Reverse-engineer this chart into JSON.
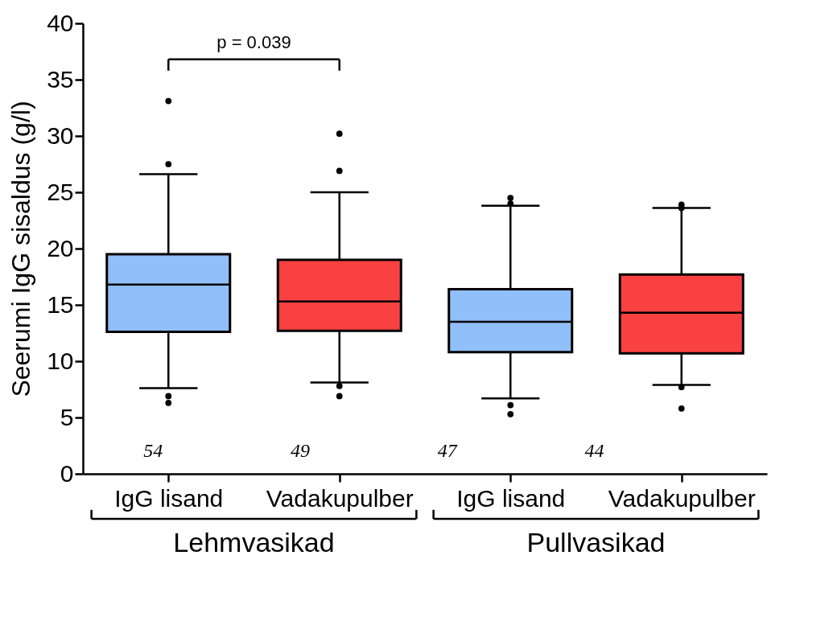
{
  "chart_data": {
    "type": "box",
    "ylabel": "Seerumi IgG sisaldus (g/l)",
    "categories": [
      "IgG lisand",
      "Vadakupulber",
      "IgG lisand",
      "Vadakupulber"
    ],
    "colors": [
      "#90bff9",
      "#f94141",
      "#90bff9",
      "#f94141"
    ],
    "boxes": [
      {
        "low": 7.6,
        "q1": 12.6,
        "median": 16.8,
        "q3": 19.5,
        "high": 26.6,
        "outliers": [
          33.1,
          27.5,
          6.9,
          6.3
        ]
      },
      {
        "low": 8.1,
        "q1": 12.7,
        "median": 15.3,
        "q3": 19.0,
        "high": 25.0,
        "outliers": [
          30.2,
          26.9,
          7.8,
          6.9
        ]
      },
      {
        "low": 6.7,
        "q1": 10.8,
        "median": 13.5,
        "q3": 16.4,
        "high": 23.8,
        "outliers": [
          24.5,
          24.0,
          6.1,
          5.3
        ]
      },
      {
        "low": 7.9,
        "q1": 10.7,
        "median": 14.3,
        "q3": 17.7,
        "high": 23.6,
        "outliers": [
          23.9,
          23.6,
          7.7,
          5.8
        ]
      }
    ],
    "ylim": [
      0,
      40
    ],
    "yticks": [
      0,
      5,
      10,
      15,
      20,
      25,
      30,
      35,
      40
    ],
    "grid": false,
    "annotations": [
      "p = 0.039",
      "54",
      "49",
      "47",
      "44",
      "Lehmvasikad",
      "Pullvasikad"
    ]
  }
}
